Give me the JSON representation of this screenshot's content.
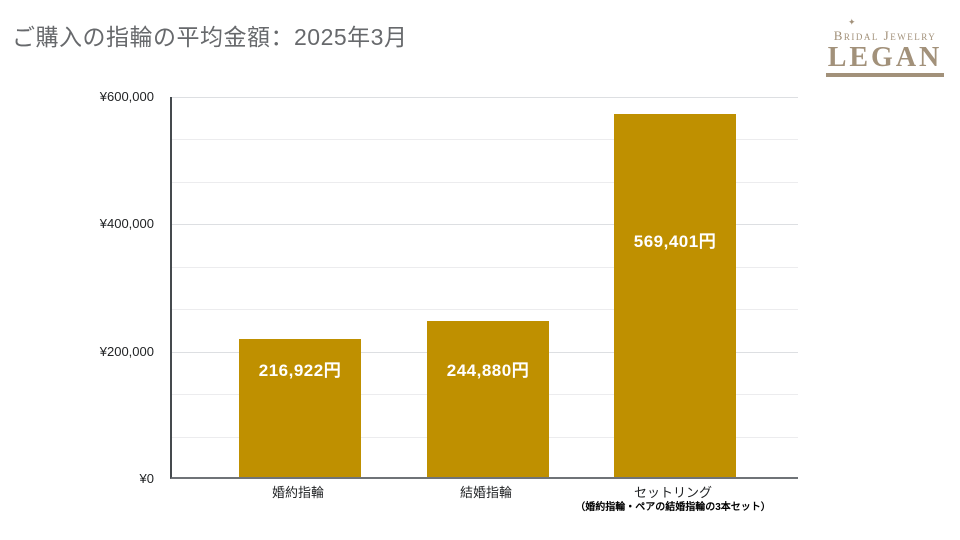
{
  "page": {
    "background": "#ffffff"
  },
  "header": {
    "title": "ご購入の指輪の平均金額：2025年3月"
  },
  "logo": {
    "tagline": "Bridal Jewelry",
    "name": "LEGAN",
    "color": "#a2917a",
    "sparkle_icon": "✦"
  },
  "chart_data": {
    "type": "bar",
    "title": "ご購入の指輪の平均金額：2025年3月",
    "categories": [
      "婚約指輪",
      "結婚指輪",
      "セットリング"
    ],
    "category_notes": [
      "",
      "",
      "（婚約指輪・ペアの結婚指輪の3本セット）"
    ],
    "values": [
      216922,
      244880,
      569401
    ],
    "data_labels": [
      "216,922円",
      "244,880円",
      "569,401円"
    ],
    "y_ticks": [
      {
        "value": 0,
        "label": "¥0"
      },
      {
        "value": 200000,
        "label": "¥200,000"
      },
      {
        "value": 400000,
        "label": "¥400,000"
      },
      {
        "value": 600000,
        "label": "¥600,000"
      }
    ],
    "ylim": [
      0,
      600000
    ],
    "xlabel": "",
    "ylabel": "",
    "grid": true,
    "gridline_interval": 66667,
    "legend": "none",
    "bar_color": "#bf9000",
    "data_label_color": "#ffffff"
  }
}
